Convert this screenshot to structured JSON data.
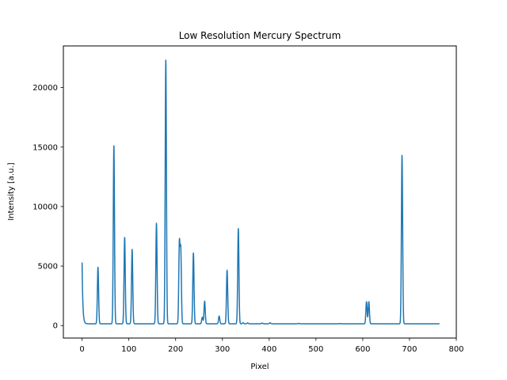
{
  "chart_data": {
    "type": "line",
    "title": "Low Resolution Mercury Spectrum",
    "xlabel": "Pixel",
    "ylabel": "Intensity [a.u.]",
    "xlim": [
      -40,
      800
    ],
    "ylim": [
      -1050,
      23500
    ],
    "xticks": [
      0,
      100,
      200,
      300,
      400,
      500,
      600,
      700,
      800
    ],
    "yticks": [
      0,
      5000,
      10000,
      15000,
      20000
    ],
    "grid": false,
    "legend": "none",
    "series": [
      {
        "color": "#1f77b4",
        "x_range": [
          0,
          764
        ],
        "baseline": 150,
        "start_value": 5300,
        "peaks": [
          {
            "x": 34,
            "y": 4900
          },
          {
            "x": 68,
            "y": 15100
          },
          {
            "x": 91,
            "y": 7400
          },
          {
            "x": 107,
            "y": 6400
          },
          {
            "x": 159,
            "y": 8600
          },
          {
            "x": 179,
            "y": 22300
          },
          {
            "x": 208,
            "y": 6800
          },
          {
            "x": 211,
            "y": 6200
          },
          {
            "x": 238,
            "y": 6100
          },
          {
            "x": 257,
            "y": 700
          },
          {
            "x": 262,
            "y": 2050
          },
          {
            "x": 293,
            "y": 800
          },
          {
            "x": 310,
            "y": 4650
          },
          {
            "x": 334,
            "y": 8150
          },
          {
            "x": 344,
            "y": 230
          },
          {
            "x": 354,
            "y": 220
          },
          {
            "x": 385,
            "y": 210
          },
          {
            "x": 402,
            "y": 230
          },
          {
            "x": 463,
            "y": 180
          },
          {
            "x": 551,
            "y": 170
          },
          {
            "x": 608,
            "y": 2000
          },
          {
            "x": 613,
            "y": 2000
          },
          {
            "x": 684,
            "y": 14300
          }
        ]
      }
    ]
  }
}
